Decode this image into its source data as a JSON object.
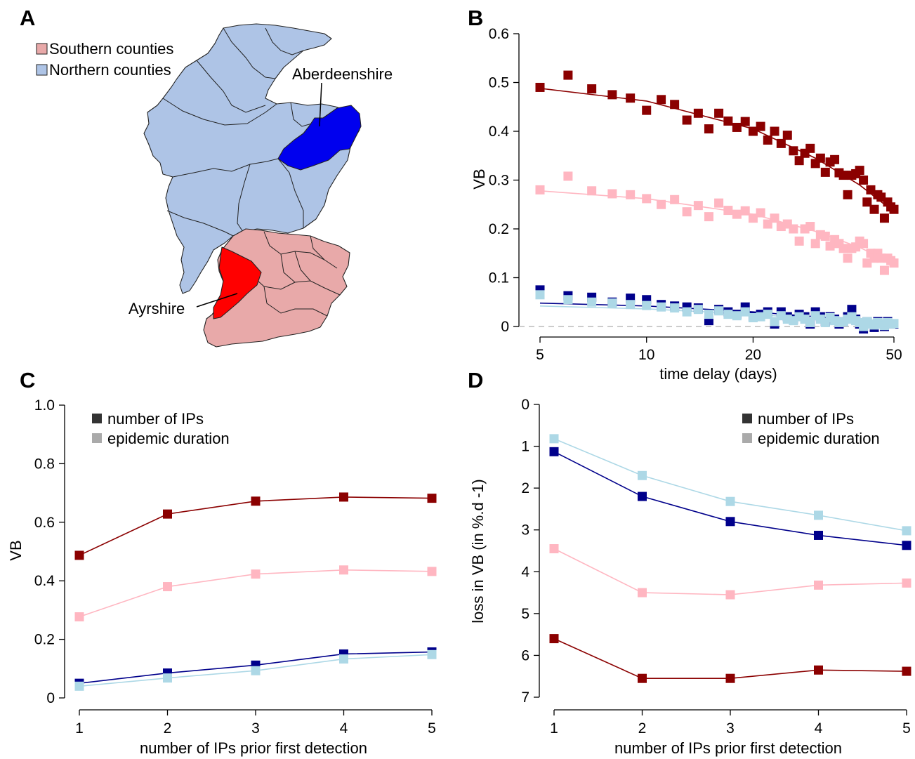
{
  "panel_labels": [
    "A",
    "B",
    "C",
    "D"
  ],
  "map": {
    "legend": [
      {
        "label": "Southern counties",
        "color": "#e8a9a9"
      },
      {
        "label": "Northern counties",
        "color": "#aec4e6"
      }
    ],
    "highlights": [
      {
        "label": "Aberdeenshire",
        "color": "#0000ee"
      },
      {
        "label": "Ayrshire",
        "color": "#ff0000"
      }
    ]
  },
  "colors": {
    "ayrshire_ips": "#8b0000",
    "ayrshire_duration": "#ffb6c1",
    "aberdeenshire_ips": "#00008b",
    "aberdeenshire_duration": "#add8e6",
    "legend_ips": "#333333",
    "legend_duration": "#aaaaaa"
  },
  "chart_data": [
    {
      "panel": "B",
      "type": "scatter",
      "xlabel": "time delay (days)",
      "ylabel": "VB",
      "xscale": "log",
      "xlim": [
        5,
        50
      ],
      "ylim": [
        0,
        0.6
      ],
      "xticks": [
        "5",
        "10",
        "20",
        "50"
      ],
      "yticks": [
        "0",
        "0.1",
        "0.2",
        "0.3",
        "0.4",
        "0.5",
        "0.6"
      ],
      "series": [
        {
          "key": "ayrshire_ips",
          "x": [
            5,
            6,
            7,
            8,
            9,
            10,
            11,
            12,
            13,
            14,
            15,
            16,
            17,
            18,
            19,
            20,
            21,
            22,
            23,
            24,
            25,
            26,
            27,
            28,
            29,
            30,
            31,
            32,
            33,
            34,
            35,
            36,
            37,
            38,
            39,
            40,
            41,
            42,
            43,
            44,
            45,
            46,
            47,
            48,
            49,
            50
          ],
          "y": [
            0.49,
            0.515,
            0.487,
            0.475,
            0.468,
            0.443,
            0.465,
            0.455,
            0.423,
            0.437,
            0.405,
            0.437,
            0.421,
            0.408,
            0.42,
            0.4,
            0.41,
            0.382,
            0.4,
            0.375,
            0.392,
            0.36,
            0.34,
            0.355,
            0.365,
            0.334,
            0.345,
            0.316,
            0.337,
            0.342,
            0.315,
            0.31,
            0.27,
            0.31,
            0.313,
            0.32,
            0.3,
            0.255,
            0.28,
            0.24,
            0.27,
            0.265,
            0.222,
            0.255,
            0.245,
            0.24
          ]
        },
        {
          "key": "ayrshire_duration",
          "x": [
            5,
            6,
            7,
            8,
            9,
            10,
            11,
            12,
            13,
            14,
            15,
            16,
            17,
            18,
            19,
            20,
            21,
            22,
            23,
            24,
            25,
            26,
            27,
            28,
            29,
            30,
            31,
            32,
            33,
            34,
            35,
            36,
            37,
            38,
            39,
            40,
            41,
            42,
            43,
            44,
            45,
            46,
            47,
            48,
            49,
            50
          ],
          "y": [
            0.28,
            0.308,
            0.278,
            0.272,
            0.27,
            0.262,
            0.25,
            0.26,
            0.235,
            0.248,
            0.225,
            0.253,
            0.238,
            0.23,
            0.237,
            0.222,
            0.233,
            0.21,
            0.222,
            0.205,
            0.21,
            0.2,
            0.175,
            0.2,
            0.205,
            0.17,
            0.188,
            0.185,
            0.165,
            0.178,
            0.17,
            0.16,
            0.14,
            0.16,
            0.163,
            0.175,
            0.17,
            0.13,
            0.15,
            0.14,
            0.15,
            0.14,
            0.115,
            0.14,
            0.135,
            0.13
          ]
        },
        {
          "key": "aberdeenshire_ips",
          "x": [
            5,
            6,
            7,
            8,
            9,
            10,
            11,
            12,
            13,
            14,
            15,
            16,
            17,
            18,
            19,
            20,
            21,
            22,
            23,
            24,
            25,
            26,
            27,
            28,
            29,
            30,
            31,
            32,
            33,
            34,
            35,
            36,
            37,
            38,
            39,
            40,
            41,
            42,
            43,
            44,
            45,
            46,
            47,
            48,
            49,
            50
          ],
          "y": [
            0.075,
            0.063,
            0.06,
            0.05,
            0.058,
            0.055,
            0.045,
            0.042,
            0.04,
            0.038,
            0.012,
            0.035,
            0.03,
            0.025,
            0.04,
            0.02,
            0.025,
            0.03,
            0.005,
            0.03,
            0.02,
            0.015,
            0.025,
            0.02,
            0.005,
            0.03,
            0.02,
            0.01,
            0.02,
            0.015,
            0.005,
            0.01,
            0.02,
            0.035,
            0.015,
            0.005,
            -0.005,
            0.01,
            0.005,
            -0.002,
            0.01,
            0.005,
            0.0,
            0.01,
            0.005,
            0.005
          ]
        },
        {
          "key": "aberdeenshire_duration",
          "x": [
            5,
            6,
            7,
            8,
            9,
            10,
            11,
            12,
            13,
            14,
            15,
            16,
            17,
            18,
            19,
            20,
            21,
            22,
            23,
            24,
            25,
            26,
            27,
            28,
            29,
            30,
            31,
            32,
            33,
            34,
            35,
            36,
            37,
            38,
            39,
            40,
            41,
            42,
            43,
            44,
            45,
            46,
            47,
            48,
            49,
            50
          ],
          "y": [
            0.065,
            0.055,
            0.05,
            0.048,
            0.045,
            0.043,
            0.04,
            0.038,
            0.03,
            0.035,
            0.025,
            0.032,
            0.025,
            0.022,
            0.03,
            0.018,
            0.02,
            0.025,
            0.01,
            0.022,
            0.015,
            0.012,
            0.02,
            0.015,
            0.008,
            0.022,
            0.015,
            0.008,
            0.018,
            0.012,
            0.008,
            0.01,
            0.015,
            0.02,
            0.012,
            0.008,
            0.0,
            0.01,
            0.005,
            0.003,
            0.008,
            0.005,
            0.002,
            0.008,
            0.005,
            0.006
          ]
        }
      ],
      "fits": [
        {
          "key": "ayrshire_ips",
          "x": [
            5,
            10,
            20,
            30,
            40,
            50
          ],
          "y": [
            0.488,
            0.462,
            0.405,
            0.345,
            0.29,
            0.235
          ]
        },
        {
          "key": "ayrshire_duration",
          "x": [
            5,
            10,
            20,
            30,
            40,
            50
          ],
          "y": [
            0.278,
            0.262,
            0.23,
            0.195,
            0.162,
            0.128
          ]
        },
        {
          "key": "aberdeenshire_ips",
          "x": [
            5,
            10,
            20,
            30,
            40,
            50
          ],
          "y": [
            0.048,
            0.042,
            0.03,
            0.02,
            0.012,
            0.005
          ]
        },
        {
          "key": "aberdeenshire_duration",
          "x": [
            5,
            10,
            20,
            30,
            40,
            50
          ],
          "y": [
            0.042,
            0.036,
            0.025,
            0.016,
            0.01,
            0.004
          ]
        }
      ],
      "zero_line": true
    },
    {
      "panel": "C",
      "type": "line",
      "xlabel": "number of IPs prior first detection",
      "ylabel": "VB",
      "categories": [
        "1",
        "2",
        "3",
        "4",
        "5"
      ],
      "ylim": [
        0,
        1.0
      ],
      "yticks": [
        "0",
        "0.2",
        "0.4",
        "0.6",
        "0.8",
        "1.0"
      ],
      "legend": [
        {
          "label": "number of IPs",
          "key": "legend_ips"
        },
        {
          "label": "epidemic duration",
          "key": "legend_duration"
        }
      ],
      "series": [
        {
          "key": "ayrshire_ips",
          "values": [
            0.487,
            0.628,
            0.672,
            0.686,
            0.682
          ]
        },
        {
          "key": "ayrshire_duration",
          "values": [
            0.277,
            0.38,
            0.423,
            0.437,
            0.432
          ]
        },
        {
          "key": "aberdeenshire_ips",
          "values": [
            0.05,
            0.085,
            0.112,
            0.15,
            0.157
          ]
        },
        {
          "key": "aberdeenshire_duration",
          "values": [
            0.04,
            0.068,
            0.093,
            0.133,
            0.148
          ]
        }
      ]
    },
    {
      "panel": "D",
      "type": "line",
      "xlabel": "number of IPs prior first detection",
      "ylabel": "loss in VB (in %.d -1)",
      "categories": [
        "1",
        "2",
        "3",
        "4",
        "5"
      ],
      "ylim": [
        0,
        7
      ],
      "yaxis_reversed": true,
      "yticks": [
        "0",
        "1",
        "2",
        "3",
        "4",
        "5",
        "6",
        "7"
      ],
      "legend": [
        {
          "label": "number of IPs",
          "key": "legend_ips"
        },
        {
          "label": "epidemic duration",
          "key": "legend_duration"
        }
      ],
      "series": [
        {
          "key": "ayrshire_ips",
          "values": [
            5.6,
            6.55,
            6.55,
            6.35,
            6.38
          ]
        },
        {
          "key": "ayrshire_duration",
          "values": [
            3.45,
            4.5,
            4.55,
            4.32,
            4.27
          ]
        },
        {
          "key": "aberdeenshire_ips",
          "values": [
            1.13,
            2.2,
            2.8,
            3.13,
            3.37
          ]
        },
        {
          "key": "aberdeenshire_duration",
          "values": [
            0.82,
            1.7,
            2.32,
            2.65,
            3.02
          ]
        }
      ]
    }
  ]
}
